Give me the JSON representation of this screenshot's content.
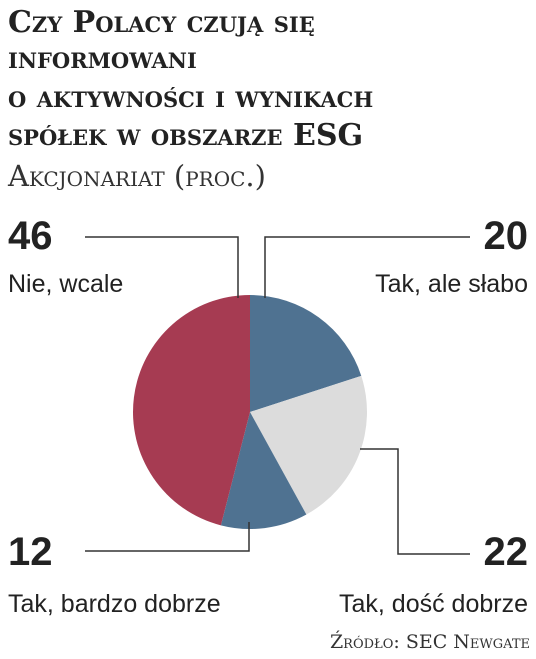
{
  "chart_data": {
    "type": "pie",
    "title": [
      "Czy Polacy czują się",
      "informowani",
      "o aktywności i wynikach",
      "spółek w obszarze ESG"
    ],
    "subtitle": "Akcjonariat (proc.)",
    "categories": [
      "Tak, ale słabo",
      "Tak, dość dobrze",
      "Tak, bardzo dobrze",
      "Nie, wcale"
    ],
    "values": [
      20,
      22,
      12,
      46
    ],
    "colors": [
      "#4f7291",
      "#dcdcdc",
      "#4f7291",
      "#a63b52"
    ],
    "source": "Źródło: SEC Newgate"
  }
}
